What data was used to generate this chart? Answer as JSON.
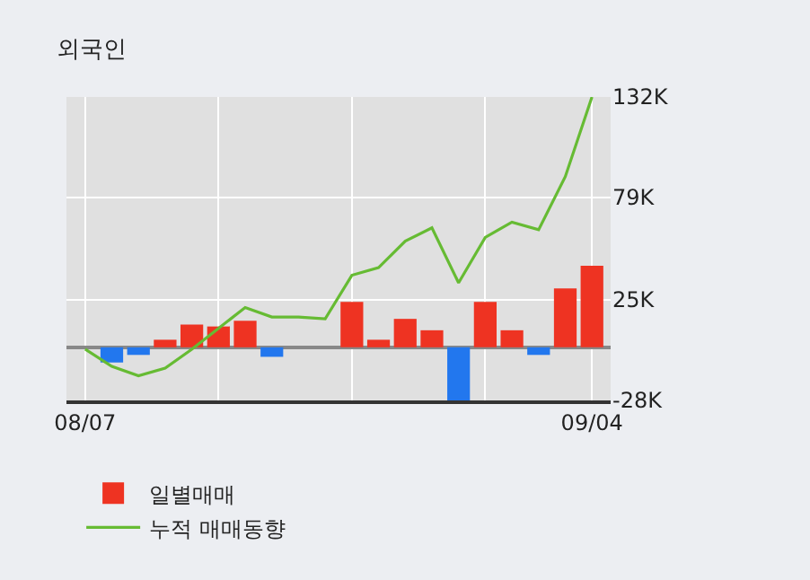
{
  "chart_data": {
    "type": "bar",
    "title": "외국인",
    "categories": [
      "08/07",
      null,
      null,
      null,
      null,
      null,
      null,
      null,
      null,
      null,
      null,
      null,
      null,
      null,
      null,
      null,
      null,
      null,
      null,
      "09/04"
    ],
    "series": [
      {
        "name": "일별매매",
        "colors": [
          "#ee3322",
          "#2277ee",
          "#2277ee",
          "#ee3322",
          "#ee3322",
          "#ee3322",
          "#ee3322",
          "#2277ee",
          "#ee3322",
          "#ee3322",
          "#ee3322",
          "#ee3322",
          "#ee3322",
          "#ee3322",
          "#2277ee",
          "#ee3322",
          "#ee3322",
          "#2277ee",
          "#ee3322",
          "#ee3322"
        ],
        "values": [
          0,
          -8000,
          -4000,
          4000,
          12000,
          11000,
          14000,
          -5000,
          0,
          0,
          24000,
          4000,
          15000,
          9000,
          -28000,
          24000,
          9000,
          -4000,
          31000,
          43000
        ]
      },
      {
        "name": "누적 매매동향",
        "type": "line",
        "color": "#66bb33",
        "values": [
          -1000,
          -10000,
          -15000,
          -11000,
          -1000,
          10000,
          21000,
          16000,
          16000,
          15000,
          38000,
          42000,
          56000,
          63000,
          34000,
          58000,
          66000,
          62000,
          90000,
          132000
        ]
      }
    ],
    "ylim": [
      -28000,
      132000
    ],
    "yticks": [
      {
        "value": -28000,
        "label": "-28K"
      },
      {
        "value": 25000,
        "label": "25K"
      },
      {
        "value": 79000,
        "label": "79K"
      },
      {
        "value": 132000,
        "label": "132K"
      }
    ],
    "grid": true,
    "legend": "bottom",
    "marker": "none",
    "line_style": "solid"
  }
}
